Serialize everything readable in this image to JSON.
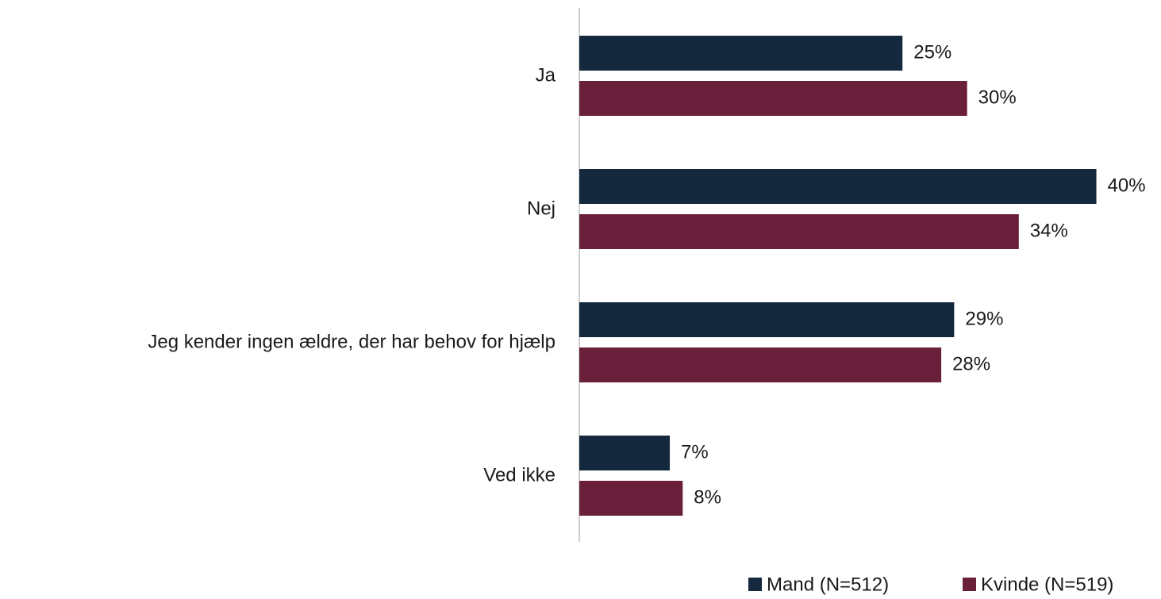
{
  "chart_data": {
    "type": "bar",
    "orientation": "horizontal",
    "categories": [
      "Ja",
      "Nej",
      "Jeg kender ingen ældre, der har behov for hjælp",
      "Ved ikke"
    ],
    "series": [
      {
        "name": "Mand (N=512)",
        "color": "#14293d",
        "values": [
          25,
          40,
          29,
          7
        ],
        "value_labels": [
          "25%",
          "40%",
          "29%",
          "7%"
        ]
      },
      {
        "name": "Kvinde (N=519)",
        "color": "#6a1f3b",
        "values": [
          30,
          34,
          28,
          8
        ],
        "value_labels": [
          "30%",
          "34%",
          "28%",
          "8%"
        ]
      }
    ],
    "xlim": [
      0,
      45
    ],
    "legend": "bottom-right"
  }
}
